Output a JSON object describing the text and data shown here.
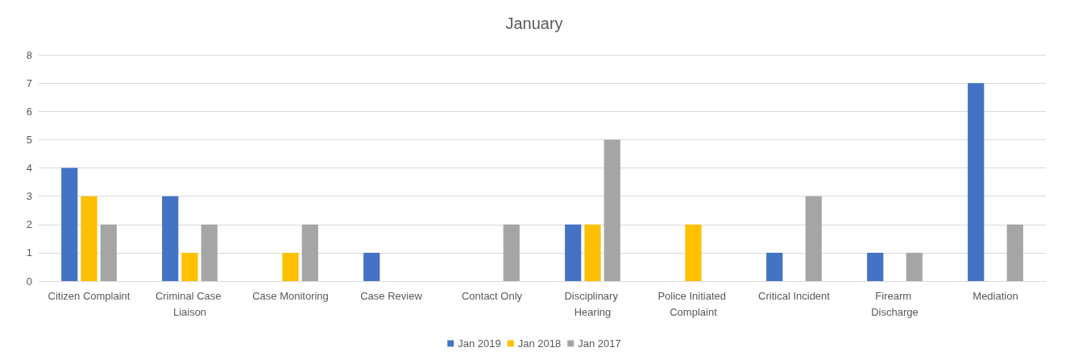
{
  "chart_data": {
    "type": "bar",
    "title": "January",
    "categories": [
      "Citizen Complaint",
      "Criminal Case Liaison",
      "Case Monitoring",
      "Case Review",
      "Contact Only",
      "Disciplinary Hearing",
      "Police Initiated Complaint",
      "Critical Incident",
      "Firearm Discharge",
      "Mediation"
    ],
    "series": [
      {
        "name": "Jan 2019",
        "color": "#4472c4",
        "values": [
          4,
          3,
          0,
          1,
          0,
          2,
          0,
          1,
          1,
          7
        ]
      },
      {
        "name": "Jan 2018",
        "color": "#ffc000",
        "values": [
          3,
          1,
          1,
          0,
          0,
          2,
          2,
          0,
          0,
          0
        ]
      },
      {
        "name": "Jan 2017",
        "color": "#a5a5a5",
        "values": [
          2,
          2,
          2,
          0,
          2,
          5,
          0,
          3,
          1,
          2
        ]
      }
    ],
    "ylim": [
      0,
      8
    ],
    "yticks": [
      0,
      1,
      2,
      3,
      4,
      5,
      6,
      7,
      8
    ],
    "grid": "y",
    "legend": "bottom"
  }
}
